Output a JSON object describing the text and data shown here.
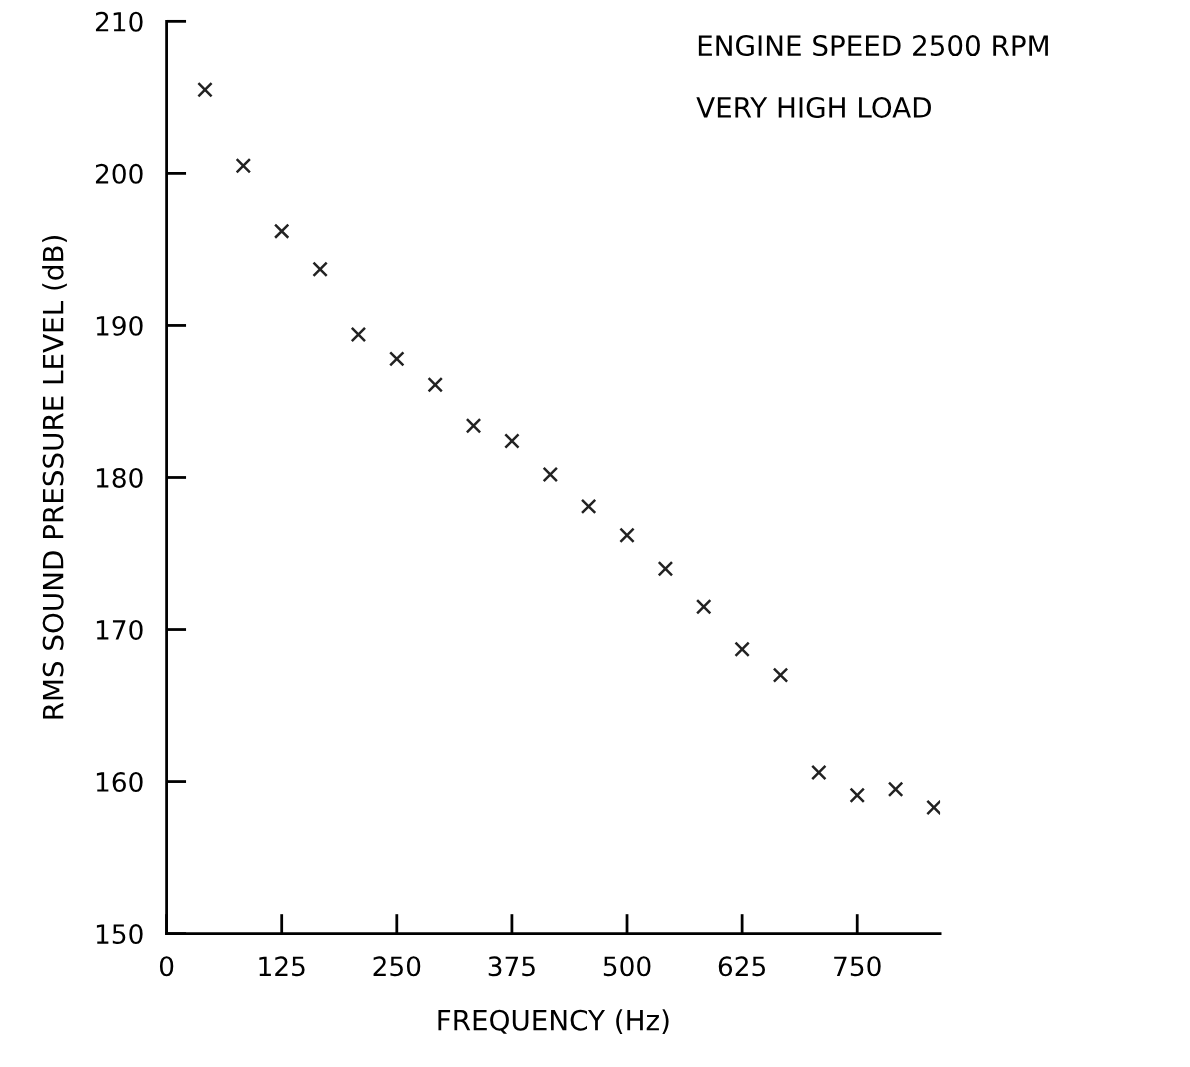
{
  "chart_data": {
    "type": "scatter",
    "xlabel": "FREQUENCY (Hz)",
    "ylabel": "RMS SOUND PRESSURE LEVEL (dB)",
    "annotations": [
      "ENGINE SPEED 2500 RPM",
      "VERY HIGH LOAD"
    ],
    "x": [
      41.7,
      83.3,
      125,
      166.7,
      208.3,
      250,
      291.7,
      333.3,
      375,
      416.7,
      458.3,
      500,
      541.7,
      583.3,
      625,
      666.7,
      708.3,
      750,
      791.7,
      833.3
    ],
    "series": [
      {
        "color": "#222222",
        "values": [
          205.5,
          200.5,
          196.2,
          193.7,
          189.4,
          187.8,
          186.1,
          183.4,
          182.4,
          180.2,
          178.1,
          176.2,
          174.0,
          171.5,
          168.7,
          167.0,
          160.6,
          159.1,
          159.5,
          158.3
        ]
      }
    ],
    "marker": "cross",
    "grid": false,
    "legend": false,
    "xlim": [
      0,
      840
    ],
    "ylim": [
      150,
      210
    ],
    "xticks": [
      0,
      125,
      250,
      375,
      500,
      625,
      750
    ],
    "yticks": [
      150,
      160,
      170,
      180,
      190,
      200,
      210
    ]
  }
}
